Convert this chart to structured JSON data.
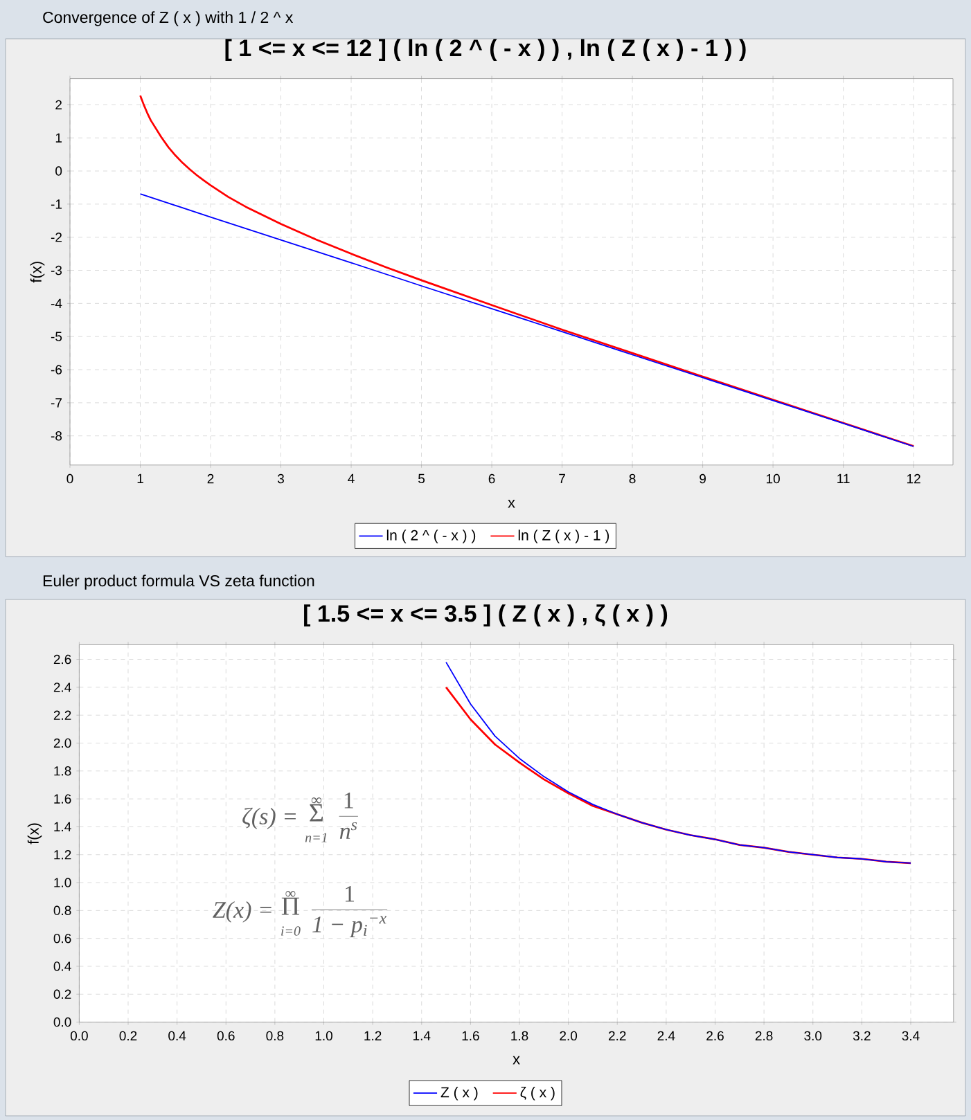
{
  "chart_data": [
    {
      "type": "line",
      "title": "[ 1 <= x <= 12 ] ( ln ( 2 ^ ( - x ) ) , ln ( Z ( x ) - 1 ) )",
      "annotations": [
        "Convergence of Z ( x ) with 1 / 2 ^ x"
      ],
      "xlabel": "x",
      "ylabel": "f(x)",
      "series": [
        {
          "name": "ln ( 2 ^ ( - x ) )",
          "color": "#0000ff",
          "x": [
            1,
            2,
            3,
            4,
            5,
            6,
            7,
            8,
            9,
            10,
            11,
            12
          ],
          "values": [
            -0.69,
            -1.39,
            -2.08,
            -2.77,
            -3.47,
            -4.16,
            -4.85,
            -5.55,
            -6.24,
            -6.93,
            -7.62,
            -8.32
          ]
        },
        {
          "name": "ln ( Z ( x ) - 1 )",
          "color": "#ff0000",
          "x": [
            1,
            1.05,
            1.1,
            1.15,
            1.2,
            1.3,
            1.4,
            1.5,
            1.6,
            1.7,
            1.8,
            1.9,
            2,
            2.25,
            2.5,
            3,
            3.5,
            4,
            4.5,
            5,
            6,
            7,
            8,
            9,
            10,
            11,
            12
          ],
          "values": [
            2.28,
            2.0,
            1.75,
            1.53,
            1.36,
            1.02,
            0.72,
            0.47,
            0.25,
            0.06,
            -0.12,
            -0.28,
            -0.43,
            -0.78,
            -1.08,
            -1.6,
            -2.07,
            -2.5,
            -2.91,
            -3.3,
            -4.05,
            -4.79,
            -5.5,
            -6.21,
            -6.91,
            -7.61,
            -8.31
          ]
        }
      ],
      "xlim": [
        0,
        12.56
      ],
      "ylim": [
        -8.88,
        2.79
      ],
      "xticks": [
        0,
        1,
        2,
        3,
        4,
        5,
        6,
        7,
        8,
        9,
        10,
        11,
        12
      ],
      "yticks": [
        -8,
        -7,
        -6,
        -5,
        -4,
        -3,
        -2,
        -1,
        0,
        1,
        2
      ],
      "grid": true,
      "legend": "bottom"
    },
    {
      "type": "line",
      "title": "[ 1.5 <= x <= 3.5 ] ( Z ( x ) , ζ ( x ) )",
      "annotations": [
        "Euler product formula VS zeta function",
        "ζ(s) =",
        "∞",
        "Σ",
        "n=1",
        "1",
        "n$^{s}$",
        "Z(x) =",
        "∞",
        "Π",
        "i=0",
        "1",
        "1 − p$_{i}$$^{−x}$"
      ],
      "xlabel": "x",
      "ylabel": "f(x)",
      "series": [
        {
          "name": "Z ( x )",
          "color": "#0000ff",
          "x": [
            1.5,
            1.6,
            1.7,
            1.8,
            1.9,
            2.0,
            2.1,
            2.2,
            2.3,
            2.4,
            2.5,
            2.6,
            2.7,
            2.8,
            2.9,
            3.0,
            3.1,
            3.2,
            3.3,
            3.4
          ],
          "values": [
            2.58,
            2.28,
            2.05,
            1.89,
            1.76,
            1.65,
            1.56,
            1.49,
            1.43,
            1.38,
            1.34,
            1.31,
            1.27,
            1.25,
            1.22,
            1.2,
            1.18,
            1.17,
            1.15,
            1.14
          ]
        },
        {
          "name": "ζ ( x )",
          "color": "#ff0000",
          "x": [
            1.5,
            1.6,
            1.7,
            1.8,
            1.9,
            2.0,
            2.1,
            2.2,
            2.3,
            2.4,
            2.5,
            2.6,
            2.7,
            2.8,
            2.9,
            3.0,
            3.1,
            3.2,
            3.3,
            3.4
          ],
          "values": [
            2.4,
            2.17,
            1.99,
            1.86,
            1.74,
            1.64,
            1.55,
            1.49,
            1.43,
            1.38,
            1.34,
            1.31,
            1.27,
            1.25,
            1.22,
            1.2,
            1.18,
            1.17,
            1.15,
            1.14
          ]
        }
      ],
      "xlim": [
        0,
        3.575
      ],
      "ylim": [
        0,
        2.705
      ],
      "xticks": [
        {
          "value": 0,
          "label": "0.0"
        },
        0.2,
        0.4,
        0.6,
        0.8,
        {
          "value": 1,
          "label": "1.0"
        },
        1.2,
        1.4,
        1.6,
        1.8,
        {
          "value": 2,
          "label": "2.0"
        },
        2.2,
        2.4,
        2.6,
        2.8,
        {
          "value": 3,
          "label": "3.0"
        },
        3.2,
        3.4
      ],
      "yticks": [
        {
          "value": 0,
          "label": "0.0"
        },
        0.2,
        0.4,
        0.6,
        0.8,
        {
          "value": 1,
          "label": "1.0"
        },
        1.2,
        1.4,
        1.6,
        1.8,
        {
          "value": 2,
          "label": "2.0"
        },
        2.2,
        2.4,
        2.6
      ],
      "grid": true,
      "legend": "bottom"
    }
  ]
}
